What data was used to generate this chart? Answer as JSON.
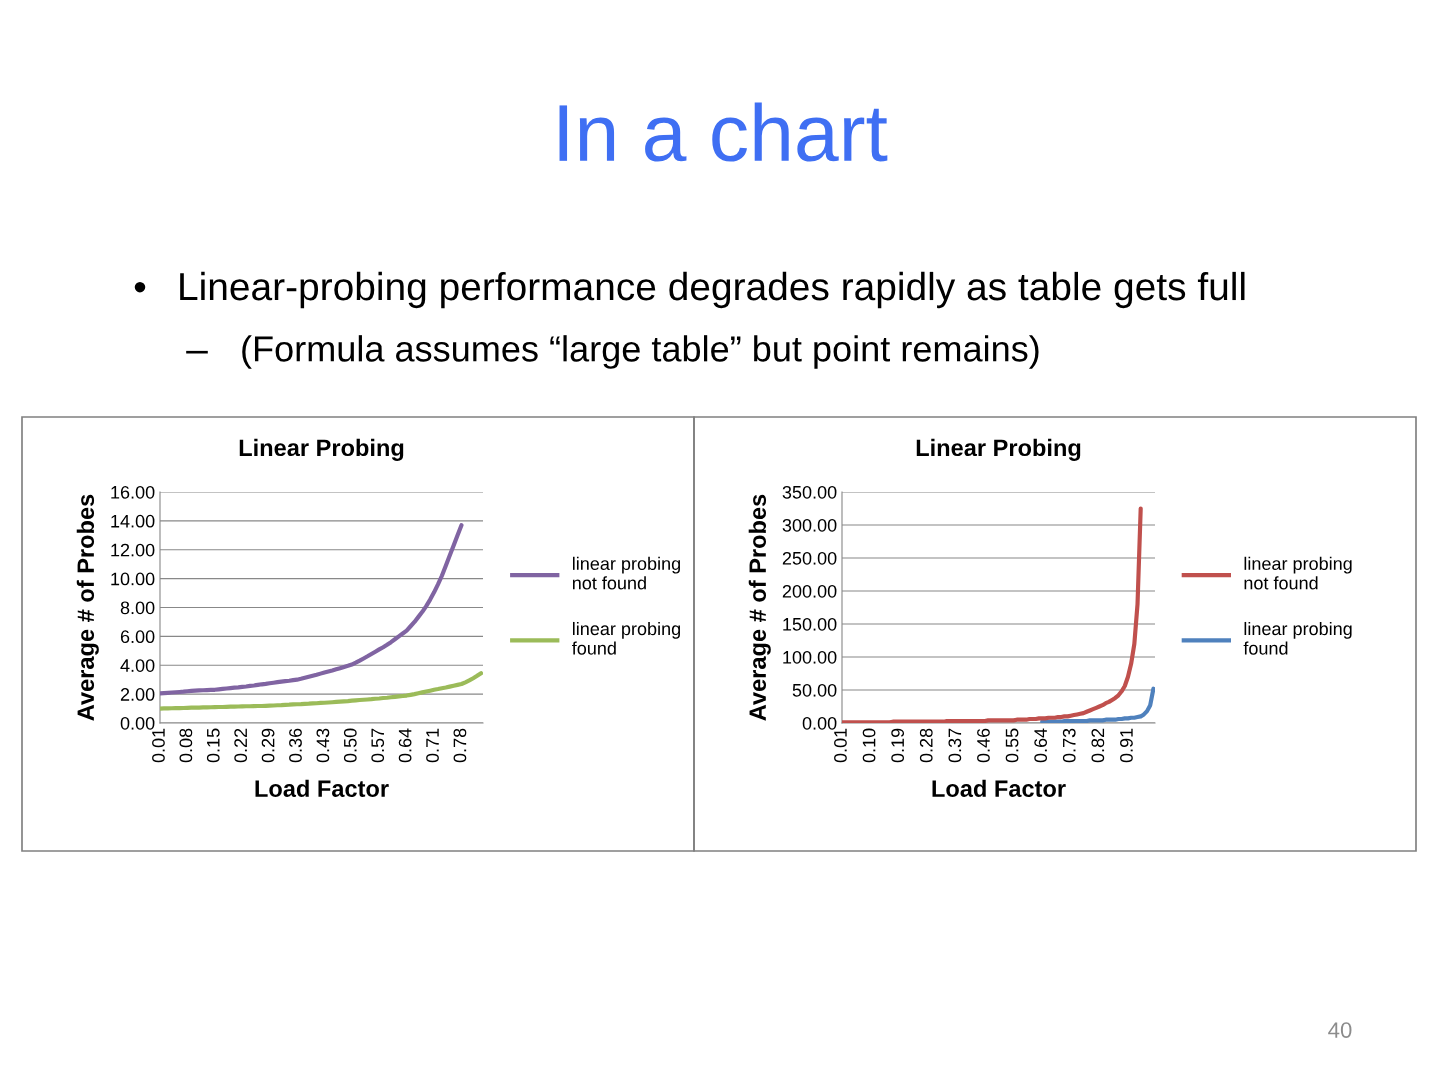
{
  "chart_data": [
    {
      "type": "line",
      "title": "Linear Probing",
      "xlabel": "Load Factor",
      "ylabel": "Average # of Probes",
      "annotations": [
        "In a chart",
        "•",
        "Linear-probing performance degrades rapidly as table gets full",
        "–",
        "(Formula assumes “large table” but point remains)",
        "40"
      ],
      "categories": [
        "0.01",
        null,
        null,
        null,
        null,
        null,
        null,
        "0.08",
        null,
        null,
        null,
        null,
        null,
        null,
        "0.15",
        null,
        null,
        null,
        null,
        null,
        null,
        "0.22",
        null,
        null,
        null,
        null,
        null,
        null,
        "0.29",
        null,
        null,
        null,
        null,
        null,
        null,
        "0.36",
        null,
        null,
        null,
        null,
        null,
        null,
        "0.43",
        null,
        null,
        null,
        null,
        null,
        null,
        "0.50",
        null,
        null,
        null,
        null,
        null,
        null,
        "0.57",
        null,
        null,
        null,
        null,
        null,
        null,
        "0.64",
        null,
        null,
        null,
        null,
        null,
        null,
        "0.71",
        null,
        null,
        null,
        null,
        null,
        null,
        "0.78",
        null,
        null,
        null,
        null,
        null
      ],
      "series": [
        {
          "name": "linear probing not found",
          "color": "#8064a2",
          "values": [
            2.05,
            2.07,
            2.09,
            2.11,
            2.13,
            2.15,
            2.17,
            2.2,
            2.22,
            2.24,
            2.26,
            2.27,
            2.28,
            2.29,
            2.3,
            2.33,
            2.36,
            2.39,
            2.42,
            2.45,
            2.47,
            2.5,
            2.53,
            2.57,
            2.6,
            2.64,
            2.68,
            2.71,
            2.75,
            2.79,
            2.83,
            2.87,
            2.9,
            2.93,
            2.97,
            3.0,
            3.06,
            3.13,
            3.2,
            3.27,
            3.34,
            3.42,
            3.5,
            3.57,
            3.64,
            3.72,
            3.8,
            3.88,
            3.96,
            4.05,
            4.18,
            4.32,
            4.47,
            4.62,
            4.78,
            4.94,
            5.1,
            5.25,
            5.42,
            5.6,
            5.8,
            6.0,
            6.2,
            6.4,
            6.7,
            7.0,
            7.35,
            7.7,
            8.1,
            8.55,
            9.05,
            9.6,
            10.2,
            10.9,
            11.6,
            12.3,
            13.0,
            13.7,
            null,
            null,
            null,
            null,
            null
          ]
        },
        {
          "name": "linear probing found",
          "color": "#9bbb59",
          "values": [
            1.0,
            1.01,
            1.01,
            1.02,
            1.03,
            1.03,
            1.04,
            1.05,
            1.06,
            1.06,
            1.07,
            1.08,
            1.08,
            1.09,
            1.1,
            1.11,
            1.11,
            1.12,
            1.13,
            1.13,
            1.14,
            1.15,
            1.16,
            1.16,
            1.17,
            1.18,
            1.18,
            1.19,
            1.2,
            1.21,
            1.23,
            1.24,
            1.26,
            1.27,
            1.29,
            1.3,
            1.31,
            1.33,
            1.34,
            1.36,
            1.37,
            1.39,
            1.4,
            1.42,
            1.44,
            1.46,
            1.48,
            1.5,
            1.52,
            1.55,
            1.57,
            1.59,
            1.61,
            1.63,
            1.65,
            1.68,
            1.7,
            1.73,
            1.75,
            1.78,
            1.81,
            1.84,
            1.87,
            1.9,
            1.95,
            2.0,
            2.06,
            2.12,
            2.18,
            2.24,
            2.3,
            2.35,
            2.41,
            2.46,
            2.52,
            2.58,
            2.64,
            2.7,
            2.82,
            2.95,
            3.1,
            3.27,
            3.45
          ]
        }
      ],
      "ylim": [
        0,
        16
      ],
      "yticks": [
        {
          "value": 0,
          "label": "0.00"
        },
        {
          "value": 2,
          "label": "2.00"
        },
        {
          "value": 4,
          "label": "4.00"
        },
        {
          "value": 6,
          "label": "6.00"
        },
        {
          "value": 8,
          "label": "8.00"
        },
        {
          "value": 10,
          "label": "10.00"
        },
        {
          "value": 12,
          "label": "12.00"
        },
        {
          "value": 14,
          "label": "14.00"
        },
        {
          "value": 16,
          "label": "16.00"
        }
      ],
      "grid": "y",
      "legend": "right",
      "marker": "none",
      "line_style": "solid"
    },
    {
      "type": "line",
      "title": "Linear Probing",
      "xlabel": "Load Factor",
      "ylabel": "Average # of Probes",
      "categories": [
        "0.01",
        null,
        null,
        null,
        null,
        null,
        null,
        null,
        null,
        "0.10",
        null,
        null,
        null,
        null,
        null,
        null,
        null,
        null,
        "0.19",
        null,
        null,
        null,
        null,
        null,
        null,
        null,
        null,
        "0.28",
        null,
        null,
        null,
        null,
        null,
        null,
        null,
        null,
        "0.37",
        null,
        null,
        null,
        null,
        null,
        null,
        null,
        null,
        "0.46",
        null,
        null,
        null,
        null,
        null,
        null,
        null,
        null,
        "0.55",
        null,
        null,
        null,
        null,
        null,
        null,
        null,
        null,
        "0.64",
        null,
        null,
        null,
        null,
        null,
        null,
        null,
        null,
        "0.73",
        null,
        null,
        null,
        null,
        null,
        null,
        null,
        null,
        "0.82",
        null,
        null,
        null,
        null,
        null,
        null,
        null,
        null,
        "0.91",
        null,
        null,
        null,
        null,
        null,
        null,
        null,
        null
      ],
      "series": [
        {
          "name": "linear probing not found",
          "color": "#c0504d",
          "values": [
            1,
            1,
            1,
            1,
            1,
            1,
            1,
            1,
            1,
            1,
            1,
            1,
            1,
            1,
            1,
            1,
            2,
            2,
            2,
            2,
            2,
            2,
            2,
            2,
            2,
            2,
            2,
            2,
            2,
            2,
            2,
            2,
            2,
            3,
            3,
            3,
            3,
            3,
            3,
            3,
            3,
            3,
            3,
            3,
            3,
            3,
            4,
            4,
            4,
            4,
            4,
            4,
            4,
            4,
            4,
            5,
            5,
            5,
            5,
            6,
            6,
            6,
            7,
            7,
            7,
            8,
            8,
            8,
            9,
            9,
            10,
            10,
            11,
            12,
            13,
            14,
            15,
            17,
            19,
            21,
            23,
            25,
            27,
            30,
            32,
            35,
            38,
            42,
            48,
            56,
            70,
            90,
            120,
            180,
            325,
            null,
            null,
            null,
            null
          ]
        },
        {
          "name": "linear probing found",
          "color": "#4f81bd",
          "values": [
            null,
            null,
            null,
            null,
            null,
            null,
            null,
            null,
            null,
            null,
            null,
            null,
            null,
            null,
            null,
            null,
            null,
            null,
            null,
            null,
            null,
            null,
            null,
            null,
            null,
            null,
            null,
            null,
            null,
            null,
            null,
            null,
            null,
            null,
            null,
            null,
            null,
            null,
            null,
            null,
            null,
            null,
            null,
            null,
            null,
            null,
            null,
            null,
            null,
            null,
            null,
            null,
            null,
            null,
            null,
            null,
            null,
            null,
            null,
            null,
            null,
            null,
            null,
            2,
            2,
            2,
            2,
            2,
            2,
            2,
            3,
            3,
            3,
            3,
            3,
            3,
            3,
            3,
            4,
            4,
            4,
            4,
            4,
            5,
            5,
            5,
            5,
            6,
            6,
            7,
            7,
            8,
            8,
            9,
            10,
            13,
            18,
            27,
            52
          ]
        }
      ],
      "ylim": [
        0,
        350
      ],
      "yticks": [
        {
          "value": 0,
          "label": "0.00"
        },
        {
          "value": 50,
          "label": "50.00"
        },
        {
          "value": 100,
          "label": "100.00"
        },
        {
          "value": 150,
          "label": "150.00"
        },
        {
          "value": 200,
          "label": "200.00"
        },
        {
          "value": 250,
          "label": "250.00"
        },
        {
          "value": 300,
          "label": "300.00"
        },
        {
          "value": 350,
          "label": "350.00"
        }
      ],
      "grid": "y",
      "legend": "right",
      "marker": "none",
      "line_style": "solid"
    }
  ]
}
